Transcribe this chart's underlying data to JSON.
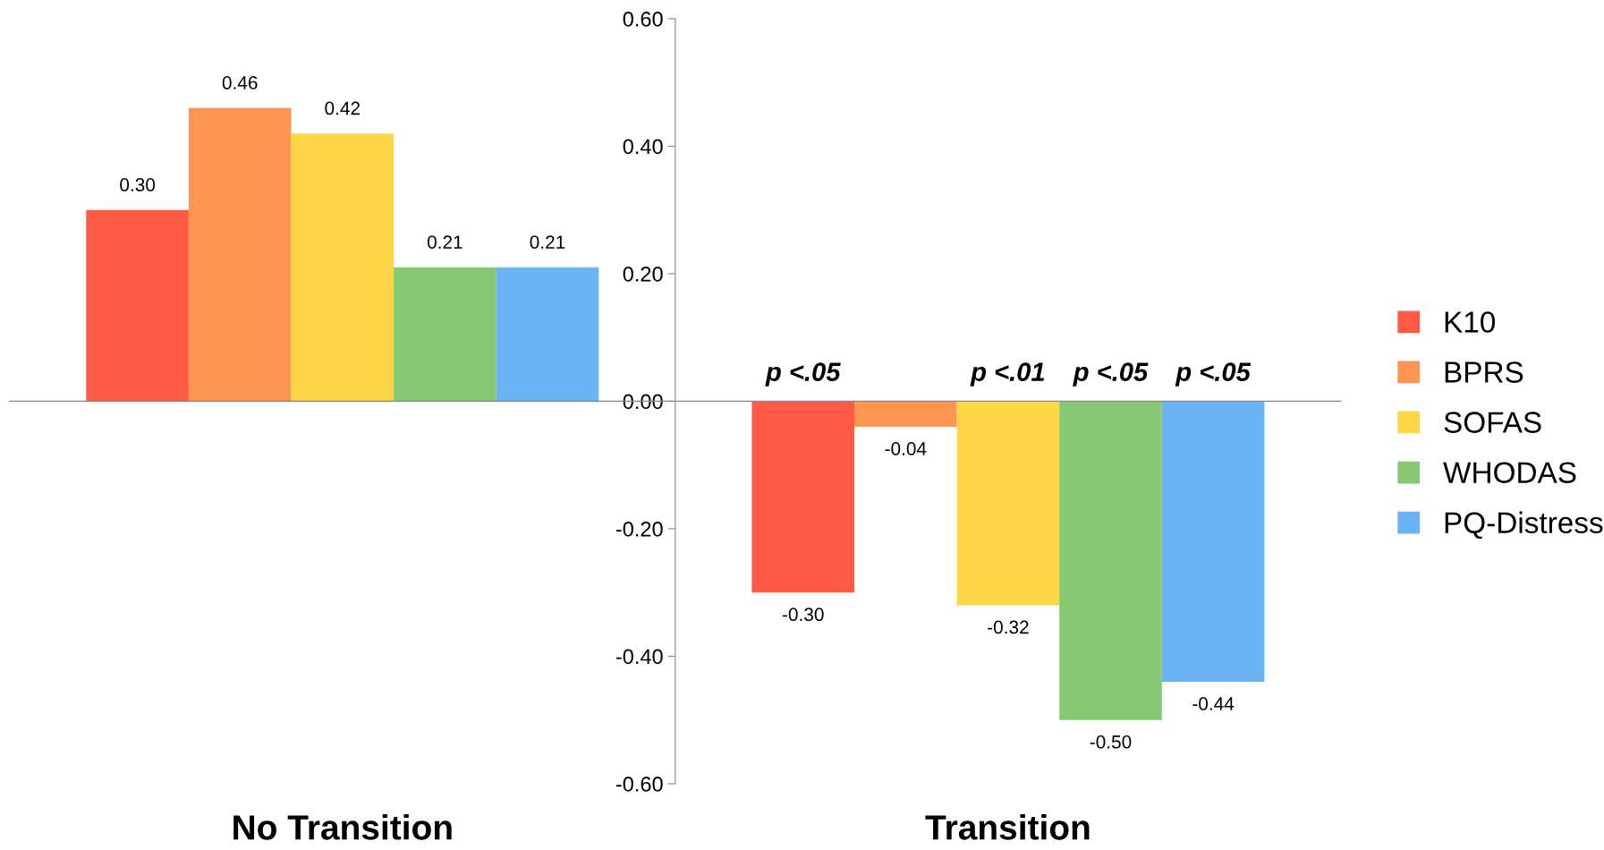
{
  "chart_data": {
    "type": "bar",
    "categories": [
      "No Transition",
      "Transition"
    ],
    "series": [
      {
        "name": "K10",
        "color": "#ff5a45",
        "values": [
          0.3,
          -0.3
        ],
        "value_labels": [
          "0.30",
          "-0.30"
        ]
      },
      {
        "name": "BPRS",
        "color": "#ff9550",
        "values": [
          0.46,
          -0.04
        ],
        "value_labels": [
          "0.46",
          "-0.04"
        ]
      },
      {
        "name": "SOFAS",
        "color": "#ffd648",
        "values": [
          0.42,
          -0.32
        ],
        "value_labels": [
          "0.42",
          "-0.32"
        ]
      },
      {
        "name": "WHODAS",
        "color": "#86c972",
        "values": [
          0.21,
          -0.5
        ],
        "value_labels": [
          "0.21",
          "-0.50"
        ]
      },
      {
        "name": "PQ-Distress",
        "color": "#6ab3f5",
        "values": [
          0.21,
          -0.44
        ],
        "value_labels": [
          "0.21",
          "-0.44"
        ]
      }
    ],
    "ylim": [
      -0.6,
      0.6
    ],
    "yticks": [
      {
        "value": -0.6,
        "label": "-0.60"
      },
      {
        "value": -0.4,
        "label": "-0.40"
      },
      {
        "value": -0.2,
        "label": "-0.20"
      },
      {
        "value": 0,
        "label": "0.00"
      },
      {
        "value": 0.2,
        "label": "0.20"
      },
      {
        "value": 0.4,
        "label": "0.40"
      },
      {
        "value": 0.6,
        "label": "0.60"
      }
    ],
    "annotations": [
      "p <.05",
      "p <.01",
      "p <.05",
      "p <.05"
    ],
    "legend": "right"
  }
}
